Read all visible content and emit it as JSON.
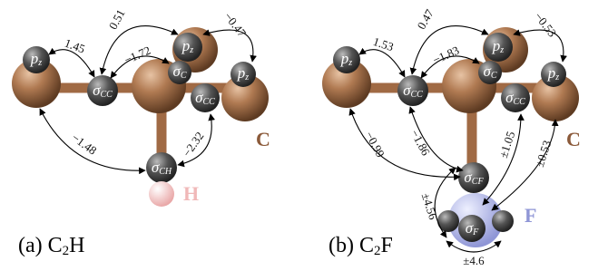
{
  "panels": [
    {
      "caption": {
        "prefix": "(a) C",
        "sub": "2",
        "suffix": "H"
      },
      "orbitals": [
        {
          "main": "p",
          "sub": "z"
        },
        {
          "main": "σ",
          "sub": "CC"
        },
        {
          "main": "p",
          "sub": "z"
        },
        {
          "main": "σ",
          "sub": "C"
        },
        {
          "main": "σ",
          "sub": "CC"
        },
        {
          "main": "p",
          "sub": "z"
        },
        {
          "main": "σ",
          "sub": "CH"
        }
      ],
      "elements": [
        "C",
        "H"
      ],
      "couplings": [
        "1.45",
        "0.51",
        "−0.47",
        "−1.72",
        "−1.48",
        "−2.32"
      ]
    },
    {
      "caption": {
        "prefix": "(b) C",
        "sub": "2",
        "suffix": "F"
      },
      "orbitals": [
        {
          "main": "p",
          "sub": "z"
        },
        {
          "main": "σ",
          "sub": "CC"
        },
        {
          "main": "p",
          "sub": "z"
        },
        {
          "main": "σ",
          "sub": "C"
        },
        {
          "main": "σ",
          "sub": "CC"
        },
        {
          "main": "p",
          "sub": "z"
        },
        {
          "main": "σ",
          "sub": "CF"
        },
        {
          "main": "σ",
          "sub": "F"
        }
      ],
      "elements": [
        "C",
        "F"
      ],
      "couplings": [
        "1.53",
        "0.47",
        "−0.53",
        "−1.83",
        "−0.99",
        "−1.86",
        "±1.05",
        "±0.53",
        "±4.56",
        "±4.6"
      ]
    }
  ]
}
